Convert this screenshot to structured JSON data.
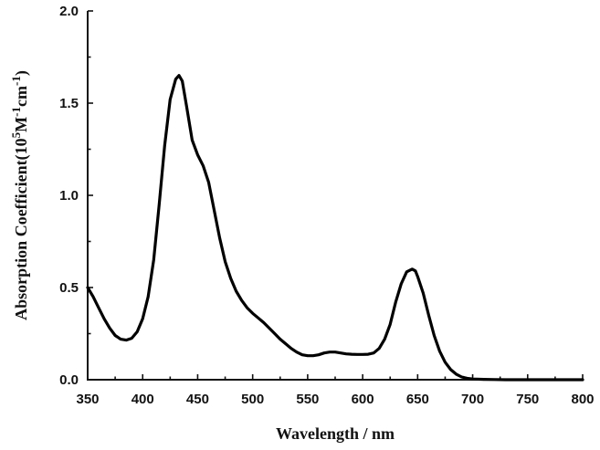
{
  "chart_data": {
    "type": "line",
    "title": "",
    "xlabel": "Wavelength / nm",
    "ylabel": {
      "prefix": "Absorption Coefficient(10",
      "sup1": "5",
      "mid1": "M",
      "sup2": "-1",
      "mid2": "cm",
      "sup3": "-1",
      "suffix": ")"
    },
    "xlim": [
      350,
      800
    ],
    "ylim": [
      0,
      2.0
    ],
    "xticks": [
      350,
      400,
      450,
      500,
      550,
      600,
      650,
      700,
      750,
      800
    ],
    "yticks": [
      0.0,
      0.5,
      1.0,
      1.5,
      2.0
    ],
    "ytick_labels": [
      "0.0",
      "0.5",
      "1.0",
      "1.5",
      "2.0"
    ],
    "grid": false,
    "series": [
      {
        "color": "#000000",
        "x": [
          350,
          355,
          360,
          365,
          370,
          375,
          380,
          385,
          390,
          395,
          400,
          405,
          410,
          415,
          420,
          425,
          430,
          433,
          436,
          440,
          445,
          450,
          455,
          460,
          465,
          470,
          475,
          480,
          485,
          490,
          495,
          500,
          505,
          510,
          515,
          520,
          525,
          530,
          535,
          540,
          545,
          550,
          555,
          560,
          565,
          570,
          575,
          580,
          585,
          590,
          595,
          600,
          605,
          610,
          615,
          620,
          625,
          630,
          635,
          640,
          645,
          648,
          650,
          655,
          660,
          665,
          670,
          675,
          680,
          685,
          690,
          695,
          700,
          710,
          720,
          730,
          750,
          800
        ],
        "y": [
          0.5,
          0.45,
          0.39,
          0.33,
          0.28,
          0.24,
          0.22,
          0.215,
          0.225,
          0.26,
          0.33,
          0.45,
          0.65,
          0.95,
          1.27,
          1.52,
          1.63,
          1.65,
          1.62,
          1.48,
          1.3,
          1.22,
          1.16,
          1.07,
          0.92,
          0.77,
          0.64,
          0.55,
          0.48,
          0.43,
          0.39,
          0.36,
          0.335,
          0.31,
          0.28,
          0.25,
          0.22,
          0.195,
          0.17,
          0.15,
          0.135,
          0.13,
          0.13,
          0.135,
          0.145,
          0.15,
          0.15,
          0.145,
          0.14,
          0.138,
          0.137,
          0.137,
          0.138,
          0.145,
          0.17,
          0.22,
          0.3,
          0.42,
          0.52,
          0.585,
          0.6,
          0.59,
          0.56,
          0.47,
          0.35,
          0.24,
          0.155,
          0.095,
          0.055,
          0.03,
          0.015,
          0.008,
          0.004,
          0.002,
          0.001,
          0.0,
          0.0,
          0.0
        ]
      }
    ]
  }
}
